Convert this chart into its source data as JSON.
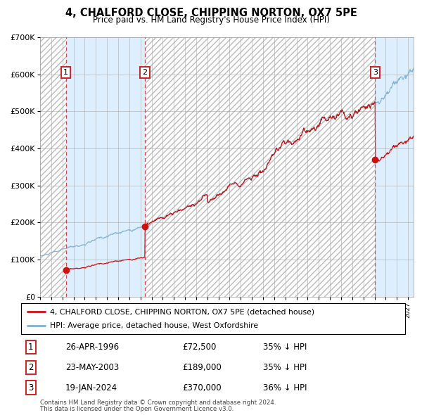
{
  "title": "4, CHALFORD CLOSE, CHIPPING NORTON, OX7 5PE",
  "subtitle": "Price paid vs. HM Land Registry's House Price Index (HPI)",
  "sales": [
    {
      "label": "1",
      "date": "1996-04-26",
      "price": 72500,
      "x_year": 1996.32
    },
    {
      "label": "2",
      "date": "2003-05-23",
      "price": 189000,
      "x_year": 2003.39
    },
    {
      "label": "3",
      "date": "2024-01-19",
      "price": 370000,
      "x_year": 2024.05
    }
  ],
  "legend_line1": "4, CHALFORD CLOSE, CHIPPING NORTON, OX7 5PE (detached house)",
  "legend_line2": "HPI: Average price, detached house, West Oxfordshire",
  "table": [
    {
      "num": "1",
      "date": "26-APR-1996",
      "price": "£72,500",
      "hpi": "35% ↓ HPI"
    },
    {
      "num": "2",
      "date": "23-MAY-2003",
      "price": "£189,000",
      "hpi": "35% ↓ HPI"
    },
    {
      "num": "3",
      "date": "19-JAN-2024",
      "price": "£370,000",
      "hpi": "36% ↓ HPI"
    }
  ],
  "footer1": "Contains HM Land Registry data © Crown copyright and database right 2024.",
  "footer2": "This data is licensed under the Open Government Licence v3.0.",
  "hpi_color": "#7bafd4",
  "price_color": "#cc1111",
  "sale_marker_color": "#cc1111",
  "dashed_line_color": "#dd4444",
  "shaded_region_color": "#ddeeff",
  "hatch_color": "#cccccc",
  "ylim": [
    0,
    700000
  ],
  "xlim_start": 1994.0,
  "xlim_end": 2027.5,
  "yticks": [
    0,
    100000,
    200000,
    300000,
    400000,
    500000,
    600000,
    700000
  ],
  "ylabels": [
    "£0",
    "£100K",
    "£200K",
    "£300K",
    "£400K",
    "£500K",
    "£600K",
    "£700K"
  ]
}
